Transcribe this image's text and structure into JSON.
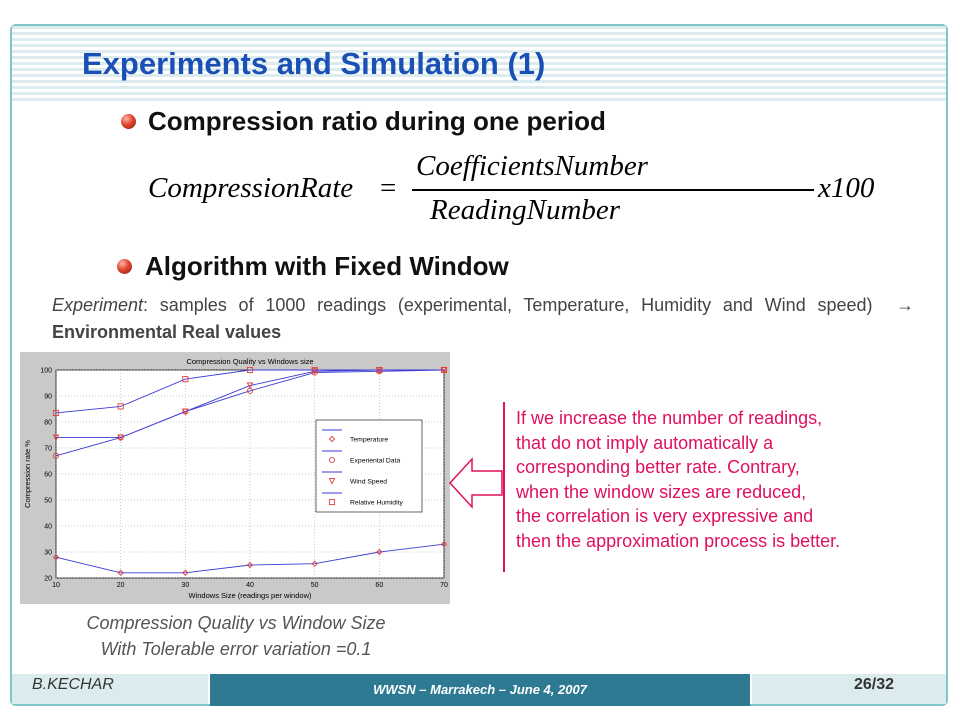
{
  "slide": {
    "title": "Experiments and Simulation (1)",
    "bullet1": "Compression ratio during one period",
    "formula": {
      "lhs": "CompressionRate",
      "eq": "=",
      "numerator": "CoefficientsNumber",
      "denominator": "ReadingNumber",
      "multiplier": "x100"
    },
    "bullet2": "Algorithm with Fixed Window",
    "experiment": {
      "term": "Experiment",
      "text": ": samples of 1000 readings (experimental, Temperature, Humidity and Wind speed)",
      "arrow": "→",
      "result": "Environmental Real values"
    },
    "caption": {
      "line1": "Compression Quality vs Window Size",
      "line2": "With Tolerable error variation =0.1"
    },
    "note": {
      "lines": [
        "If we increase the number of readings,",
        "that do not imply automatically a",
        "corresponding better rate.  Contrary,",
        "when the window sizes are reduced,",
        "the correlation is very expressive and",
        "then the approximation process is better."
      ]
    },
    "footer": {
      "author": "B.KECHAR",
      "event": "WWSN – Marrakech – June 4, 2007",
      "page": "26/32"
    },
    "colors": {
      "title": "#1a4fb5",
      "note": "#e0105f",
      "series_line": "#3b3bd6",
      "series_marker": "#e04040",
      "footer_band": "#2e7a93"
    }
  },
  "chart_data": {
    "type": "line",
    "title": "Compression Quality vs Windows size",
    "xlabel": "Windows Size (readings per window)",
    "ylabel": "Compression rate %",
    "x": [
      10,
      20,
      30,
      40,
      50,
      60,
      70
    ],
    "xlim": [
      10,
      70
    ],
    "ylim": [
      20,
      100
    ],
    "xticks": [
      10,
      20,
      30,
      40,
      50,
      60,
      70
    ],
    "yticks": [
      20,
      30,
      40,
      50,
      60,
      70,
      80,
      90,
      100
    ],
    "grid": true,
    "legend_position": "center-right",
    "series": [
      {
        "name": "Temperature",
        "marker": "diamond",
        "values": [
          28,
          22,
          22,
          25,
          25.5,
          30,
          33
        ]
      },
      {
        "name": "Experiental Data",
        "marker": "circle",
        "values": [
          67,
          74,
          84,
          92,
          99,
          99.5,
          100
        ]
      },
      {
        "name": "Wind Speed",
        "marker": "triangle-down",
        "values": [
          74,
          74,
          84,
          94,
          99.5,
          100,
          100
        ]
      },
      {
        "name": "Relative Humidity",
        "marker": "square",
        "values": [
          83.5,
          86,
          96.5,
          100,
          100,
          100,
          100
        ]
      }
    ]
  }
}
